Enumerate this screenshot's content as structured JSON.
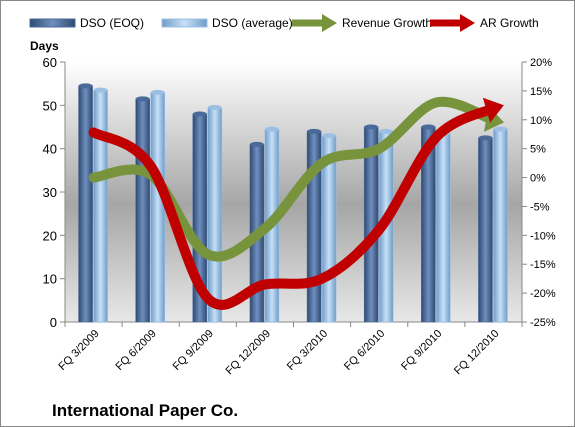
{
  "chart_data": {
    "type": "bar-line",
    "title": "International Paper Co.",
    "y_label": "Days",
    "categories": [
      "FQ 3/2009",
      "FQ 6/2009",
      "FQ 9/2009",
      "FQ 12/2009",
      "FQ 3/2010",
      "FQ 6/2010",
      "FQ 9/2010",
      "FQ 12/2010"
    ],
    "series": [
      {
        "name": "DSO (EOQ)",
        "type": "bar",
        "color": "#4a6a9a",
        "values": [
          54.5,
          51.5,
          48,
          41,
          44,
          45,
          45,
          42.5
        ]
      },
      {
        "name": "DSO (average)",
        "type": "bar",
        "color": "#9cc0e4",
        "values": [
          53.5,
          53,
          49.5,
          44.5,
          43,
          44,
          43.5,
          44.5
        ]
      },
      {
        "name": "Revenue Growth",
        "type": "line",
        "axis": "y2",
        "color": "#77933c",
        "values": [
          0,
          0.5,
          -13.3,
          -8.8,
          2.5,
          5,
          13,
          9.9
        ]
      },
      {
        "name": "AR Growth",
        "type": "line",
        "axis": "y2",
        "color": "#c00000",
        "values": [
          7.8,
          2,
          -20.9,
          -18.5,
          -17.5,
          -9,
          7,
          12
        ]
      }
    ],
    "ylim": [
      0,
      60
    ],
    "yticks": [
      0,
      10,
      20,
      30,
      40,
      50,
      60
    ],
    "y2lim": [
      -25,
      20
    ],
    "y2ticks": [
      {
        "value": -25,
        "label": "-25%"
      },
      {
        "value": -20,
        "label": "-20%"
      },
      {
        "value": -15,
        "label": "-15%"
      },
      {
        "value": -10,
        "label": "-10%"
      },
      {
        "value": -5,
        "label": "-5%"
      },
      {
        "value": 0,
        "label": "0%"
      },
      {
        "value": 5,
        "label": "5%"
      },
      {
        "value": 10,
        "label": "10%"
      },
      {
        "value": 15,
        "label": "15%"
      },
      {
        "value": 20,
        "label": "20%"
      }
    ]
  }
}
